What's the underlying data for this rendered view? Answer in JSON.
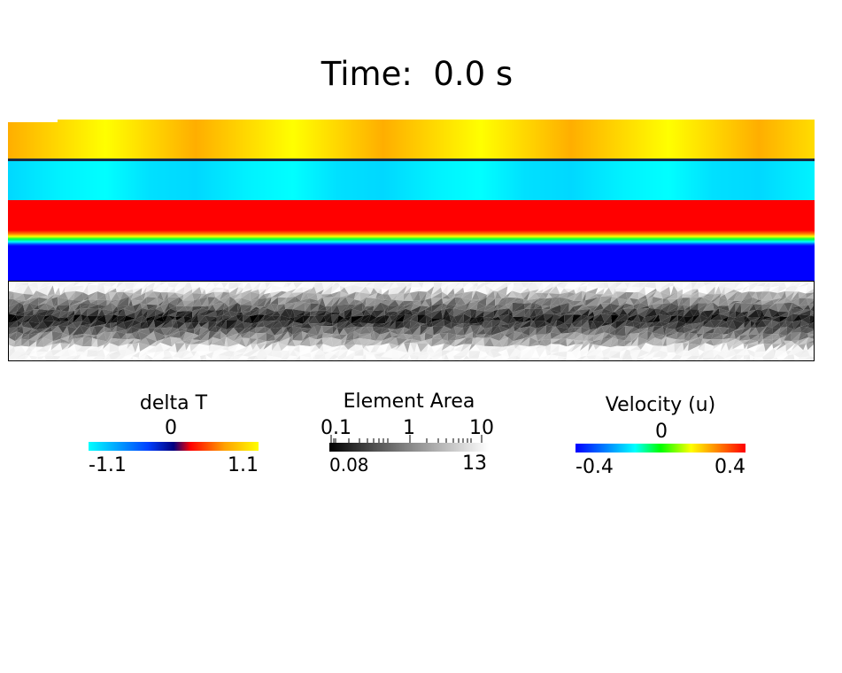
{
  "title": {
    "label": "Time:",
    "value": "0.0 s"
  },
  "legends": {
    "delta_t": {
      "title": "delta T",
      "center": "0",
      "min": "-1.1",
      "max": "1.1",
      "colors": [
        "#00ffff",
        "#0000ff",
        "#000080",
        "#ff0000",
        "#ffff00"
      ]
    },
    "element_area": {
      "title": "Element Area",
      "log_ticks": [
        "0.1",
        "1",
        "10"
      ],
      "min": "0.08",
      "max": "13",
      "colors": [
        "#000000",
        "#ffffff"
      ]
    },
    "velocity": {
      "title": "Velocity (u)",
      "center": "0",
      "min": "-0.4",
      "max": "0.4",
      "colors": [
        "#0000ff",
        "#00ffff",
        "#00ff00",
        "#ffff00",
        "#ff0000"
      ]
    }
  }
}
